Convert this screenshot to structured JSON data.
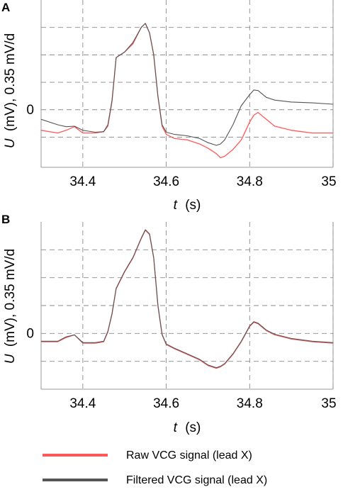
{
  "figure": {
    "legend": [
      {
        "label": "Raw VCG signal (lead X)",
        "color": "#ff5a5a"
      },
      {
        "label": "Filtered VCG signal (lead X)",
        "color": "#555555"
      }
    ]
  },
  "chart_data": [
    {
      "panel": "A",
      "type": "line",
      "xlabel_italic": "t",
      "xlabel_unit": "(s)",
      "ylabel_italic": "U",
      "ylabel_rest": "(mV), 0.35 mV/d",
      "xlim": [
        34.3,
        35.0
      ],
      "xticks": [
        34.4,
        34.6,
        34.8,
        35
      ],
      "xtick_labels": [
        "34.4",
        "34.6",
        "34.8",
        "35"
      ],
      "ylim": [
        -2.1,
        4.0
      ],
      "ytick_labels": [
        {
          "value": 0,
          "label": "0"
        }
      ],
      "ygrid": [
        -1,
        0,
        1,
        2,
        3
      ],
      "grid": true,
      "series": [
        {
          "name": "Raw VCG signal (lead X)",
          "color": "#ff5a5a",
          "x": [
            34.3,
            34.34,
            34.36,
            34.38,
            34.4,
            34.43,
            34.45,
            34.46,
            34.47,
            34.48,
            34.5,
            34.52,
            34.54,
            34.55,
            34.56,
            34.57,
            34.58,
            34.59,
            34.6,
            34.62,
            34.65,
            34.68,
            34.7,
            34.72,
            34.73,
            34.74,
            34.76,
            34.78,
            34.8,
            34.81,
            34.82,
            34.84,
            34.86,
            34.9,
            34.95,
            35.0
          ],
          "y": [
            -0.75,
            -0.85,
            -0.75,
            -0.62,
            -0.85,
            -0.85,
            -0.8,
            -0.6,
            0.3,
            1.9,
            2.1,
            2.4,
            3.0,
            3.15,
            2.8,
            2.0,
            0.5,
            -0.6,
            -0.9,
            -1.05,
            -1.1,
            -1.25,
            -1.4,
            -1.6,
            -1.75,
            -1.7,
            -1.45,
            -1.1,
            -0.45,
            -0.2,
            -0.1,
            -0.35,
            -0.6,
            -0.75,
            -0.85,
            -0.85
          ]
        },
        {
          "name": "Filtered VCG signal (lead X)",
          "color": "#555555",
          "x": [
            34.3,
            34.34,
            34.36,
            34.38,
            34.4,
            34.43,
            34.45,
            34.46,
            34.47,
            34.48,
            34.5,
            34.52,
            34.54,
            34.55,
            34.56,
            34.57,
            34.58,
            34.59,
            34.6,
            34.62,
            34.65,
            34.68,
            34.7,
            34.72,
            34.73,
            34.74,
            34.76,
            34.78,
            34.8,
            34.81,
            34.82,
            34.84,
            34.86,
            34.9,
            34.95,
            35.0
          ],
          "y": [
            -0.35,
            -0.55,
            -0.62,
            -0.6,
            -0.75,
            -0.82,
            -0.8,
            -0.55,
            0.35,
            1.9,
            2.1,
            2.45,
            3.0,
            3.15,
            2.8,
            2.0,
            0.5,
            -0.55,
            -0.82,
            -0.9,
            -0.95,
            -1.05,
            -1.2,
            -1.3,
            -1.25,
            -1.1,
            -0.55,
            0.15,
            0.55,
            0.72,
            0.7,
            0.45,
            0.35,
            0.28,
            0.25,
            0.2
          ]
        }
      ]
    },
    {
      "panel": "B",
      "type": "line",
      "xlabel_italic": "t",
      "xlabel_unit": "(s)",
      "ylabel_italic": "U",
      "ylabel_rest": "(mV), 0.35 mV/d",
      "xlim": [
        34.3,
        35.0
      ],
      "xticks": [
        34.4,
        34.6,
        34.8,
        35
      ],
      "xtick_labels": [
        "34.4",
        "34.6",
        "34.8",
        "35"
      ],
      "ylim": [
        -2.0,
        4.0
      ],
      "ytick_labels": [
        {
          "value": 0,
          "label": "0"
        }
      ],
      "ygrid": [
        -1,
        0,
        1,
        2,
        3
      ],
      "grid": true,
      "series": [
        {
          "name": "Raw VCG signal (lead X)",
          "color": "#ff5a5a",
          "x": [
            34.3,
            34.34,
            34.36,
            34.38,
            34.4,
            34.43,
            34.45,
            34.46,
            34.47,
            34.48,
            34.5,
            34.52,
            34.54,
            34.55,
            34.56,
            34.57,
            34.58,
            34.59,
            34.6,
            34.62,
            34.65,
            34.68,
            34.7,
            34.72,
            34.73,
            34.74,
            34.76,
            34.78,
            34.8,
            34.81,
            34.82,
            34.84,
            34.86,
            34.9,
            34.95,
            35.0
          ],
          "y": [
            -0.3,
            -0.3,
            -0.15,
            -0.05,
            -0.35,
            -0.35,
            -0.3,
            0.05,
            0.7,
            1.6,
            2.2,
            2.7,
            3.4,
            3.7,
            3.55,
            2.7,
            1.0,
            -0.05,
            -0.4,
            -0.55,
            -0.75,
            -0.95,
            -1.15,
            -1.25,
            -1.2,
            -1.1,
            -0.75,
            -0.3,
            0.25,
            0.4,
            0.35,
            0.1,
            -0.05,
            -0.2,
            -0.3,
            -0.35
          ]
        },
        {
          "name": "Filtered VCG signal (lead X)",
          "color": "#555555",
          "x": [
            34.3,
            34.34,
            34.36,
            34.38,
            34.4,
            34.43,
            34.45,
            34.46,
            34.47,
            34.48,
            34.5,
            34.52,
            34.54,
            34.55,
            34.56,
            34.57,
            34.58,
            34.59,
            34.6,
            34.62,
            34.65,
            34.68,
            34.7,
            34.72,
            34.73,
            34.74,
            34.76,
            34.78,
            34.8,
            34.81,
            34.82,
            34.84,
            34.86,
            34.9,
            34.95,
            35.0
          ],
          "y": [
            -0.28,
            -0.28,
            -0.12,
            -0.05,
            -0.33,
            -0.33,
            -0.28,
            0.08,
            0.72,
            1.62,
            2.22,
            2.72,
            3.42,
            3.72,
            3.57,
            2.72,
            1.02,
            -0.03,
            -0.38,
            -0.53,
            -0.73,
            -0.93,
            -1.13,
            -1.23,
            -1.18,
            -1.08,
            -0.73,
            -0.28,
            0.27,
            0.42,
            0.37,
            0.12,
            -0.03,
            -0.18,
            -0.28,
            -0.33
          ]
        }
      ]
    }
  ]
}
